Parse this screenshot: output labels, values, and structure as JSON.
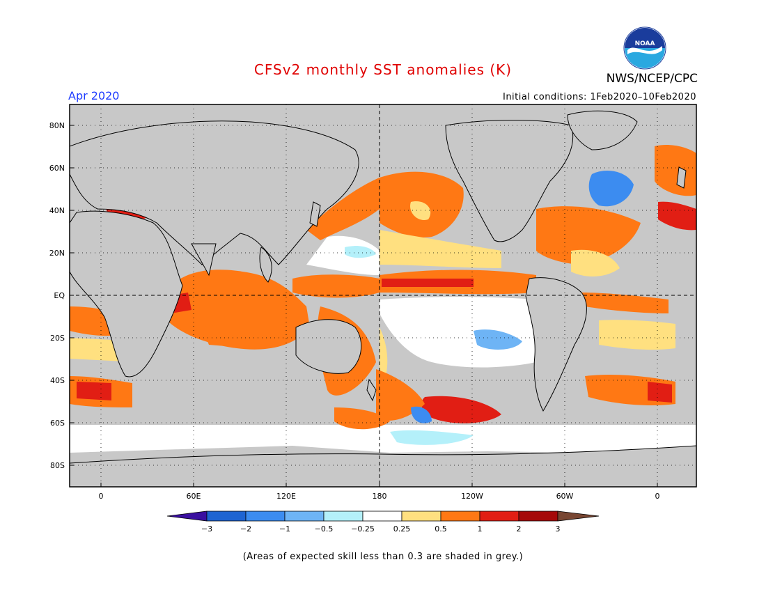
{
  "title": "CFSv2 monthly SST anomalies (K)",
  "agency": "NWS/NCEP/CPC",
  "logo_text": "NOAA",
  "valid_month": "Apr 2020",
  "initial_conditions": "Initial conditions: 1Feb2020–10Feb2020",
  "footnote": "(Areas of expected skill less than 0.3 are shaded in grey.)",
  "lat_labels": [
    "80N",
    "60N",
    "40N",
    "20N",
    "EQ",
    "20S",
    "40S",
    "60S",
    "80S"
  ],
  "lon_labels": [
    "0",
    "60E",
    "120E",
    "180",
    "120W",
    "60W",
    "0"
  ],
  "colorbar": {
    "ticks": [
      "−3",
      "−2",
      "−1",
      "−0.5",
      "−0.25",
      "0.25",
      "0.5",
      "1",
      "2",
      "3"
    ],
    "colors": [
      "#3a0fa0",
      "#1e64d2",
      "#3c8cf0",
      "#6eb4f5",
      "#b4f0fa",
      "#ffffff",
      "#ffe080",
      "#ff7814",
      "#e11e14",
      "#a50a0a",
      "#784632"
    ]
  },
  "map_colors": {
    "land": "#c8c8c8",
    "skill_grey": "#c8c8c8",
    "neutral": "#ffffff"
  }
}
